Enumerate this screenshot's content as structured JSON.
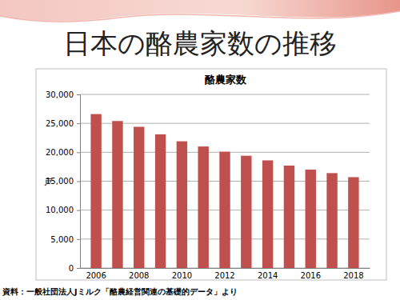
{
  "page": {
    "title": "日本の酪農家数の推移",
    "source": "資料：一般社団法人Jミルク「酪農経営関連の基礎的データ」より"
  },
  "chart_data": {
    "type": "bar",
    "title": "酪農家数",
    "y_label": "戸",
    "categories": [
      "2006",
      null,
      "2008",
      null,
      "2010",
      null,
      "2012",
      null,
      "2014",
      null,
      "2016",
      null,
      "2018"
    ],
    "values": [
      26600,
      25400,
      24400,
      23100,
      21900,
      21000,
      20100,
      19400,
      18600,
      17700,
      17000,
      16400,
      15700
    ],
    "color": "#c0504d",
    "ylim": [
      0,
      30000
    ],
    "yticks": [
      0,
      {
        "value": 5000,
        "label": "5,000"
      },
      {
        "value": 10000,
        "label": "10,000"
      },
      {
        "value": 15000,
        "label": "15,000"
      },
      {
        "value": 20000,
        "label": "20,000"
      },
      {
        "value": 25000,
        "label": "25,000"
      },
      {
        "value": 30000,
        "label": "30,000"
      }
    ],
    "grid": true
  }
}
